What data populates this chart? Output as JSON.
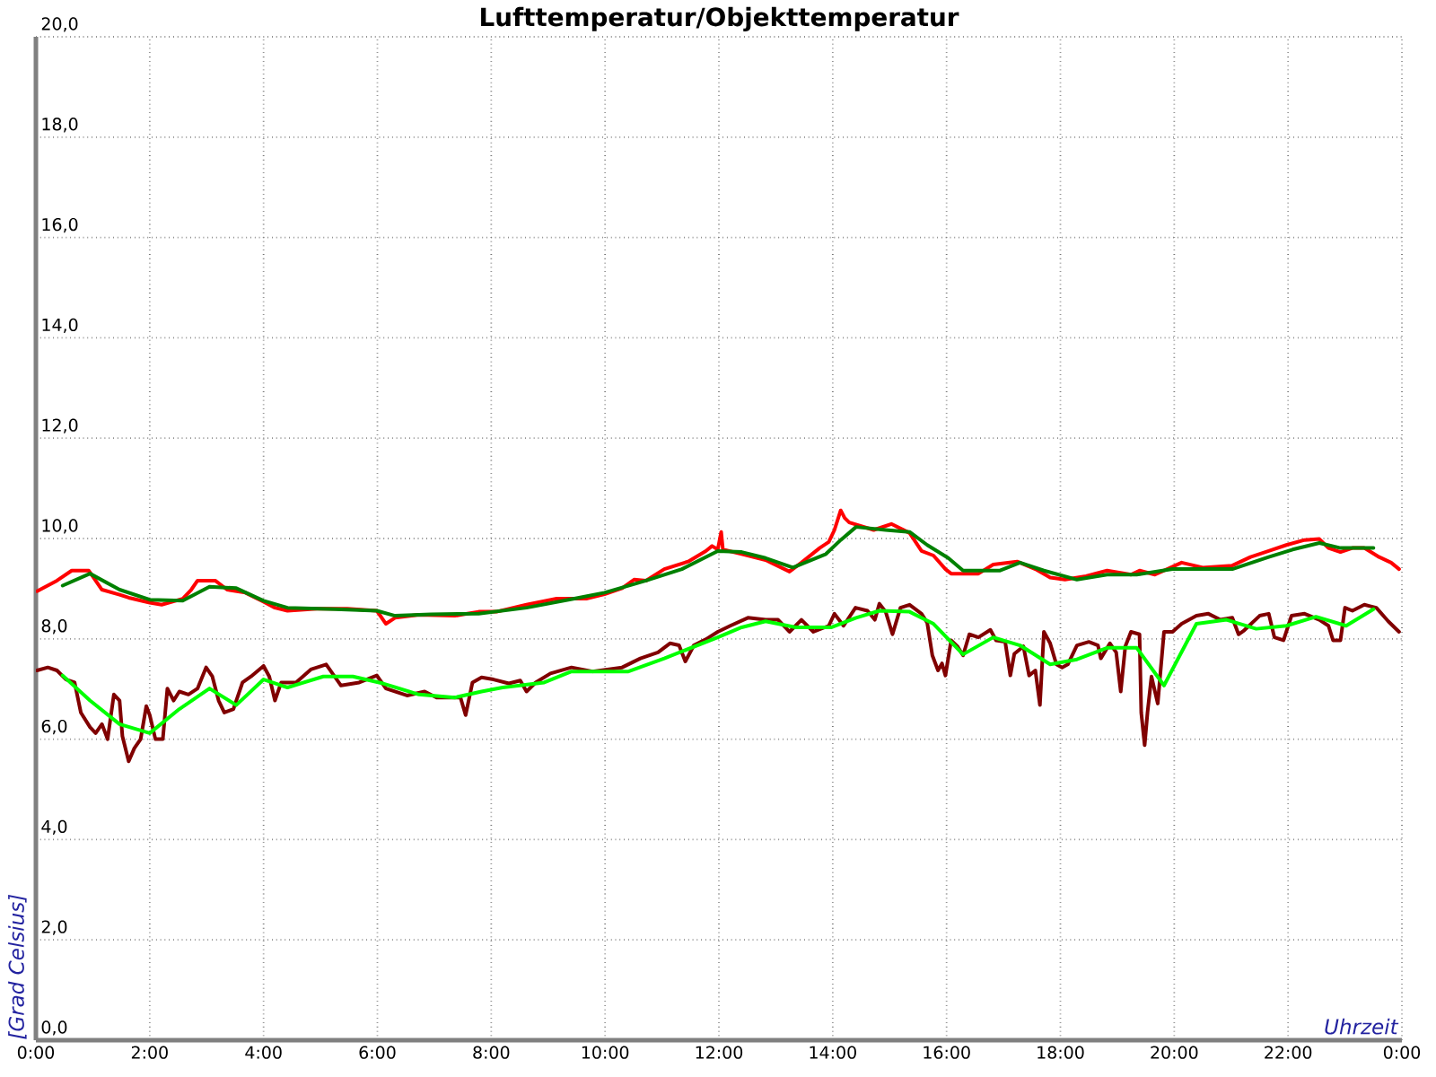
{
  "chart_data": {
    "type": "line",
    "title": "Lufttemperatur/Objekttemperatur",
    "xlabel": "Uhrzeit",
    "ylabel": "[Grad Celsius]",
    "xlim": [
      0,
      24
    ],
    "ylim": [
      0,
      20
    ],
    "xticks": [
      {
        "value": 0,
        "label": "0:00"
      },
      {
        "value": 2,
        "label": "2:00"
      },
      {
        "value": 4,
        "label": "4:00"
      },
      {
        "value": 6,
        "label": "6:00"
      },
      {
        "value": 8,
        "label": "8:00"
      },
      {
        "value": 10,
        "label": "10:00"
      },
      {
        "value": 12,
        "label": "12:00"
      },
      {
        "value": 14,
        "label": "14:00"
      },
      {
        "value": 16,
        "label": "16:00"
      },
      {
        "value": 18,
        "label": "18:00"
      },
      {
        "value": 20,
        "label": "20:00"
      },
      {
        "value": 22,
        "label": "22:00"
      },
      {
        "value": 24,
        "label": "0:00"
      }
    ],
    "yticks": [
      {
        "value": 0,
        "label": "0,0"
      },
      {
        "value": 2,
        "label": "2,0"
      },
      {
        "value": 4,
        "label": "4,0"
      },
      {
        "value": 6,
        "label": "6,0"
      },
      {
        "value": 8,
        "label": "8,0"
      },
      {
        "value": 10,
        "label": "10,0"
      },
      {
        "value": 12,
        "label": "12,0"
      },
      {
        "value": 14,
        "label": "14,0"
      },
      {
        "value": 16,
        "label": "16,0"
      },
      {
        "value": 18,
        "label": "18,0"
      },
      {
        "value": 20,
        "label": "20,0"
      }
    ],
    "grid": true,
    "series": [
      {
        "color": "#ff0000",
        "x": [
          0.02,
          0.37,
          0.63,
          0.93,
          1.16,
          1.47,
          1.63,
          2.0,
          2.21,
          2.58,
          2.73,
          2.84,
          3.15,
          3.36,
          3.68,
          4.0,
          4.2,
          4.42,
          4.94,
          5.47,
          5.99,
          6.15,
          6.31,
          6.73,
          7.36,
          7.78,
          8.09,
          8.62,
          9.15,
          9.67,
          9.99,
          10.3,
          10.51,
          10.72,
          11.04,
          11.46,
          11.77,
          11.88,
          11.98,
          12.04,
          12.07,
          12.4,
          12.82,
          13.24,
          13.45,
          13.77,
          13.93,
          14.03,
          14.14,
          14.21,
          14.29,
          14.72,
          15.03,
          15.35,
          15.56,
          15.77,
          15.98,
          16.08,
          16.56,
          16.82,
          17.24,
          17.56,
          17.82,
          18.08,
          18.45,
          18.82,
          19.24,
          19.39,
          19.66,
          20.13,
          20.5,
          21.02,
          21.34,
          21.66,
          21.97,
          22.29,
          22.55,
          22.71,
          22.92,
          23.13,
          23.34,
          23.6,
          23.81,
          23.95
        ],
        "values": [
          8.95,
          9.16,
          9.36,
          9.36,
          8.98,
          8.88,
          8.82,
          8.72,
          8.68,
          8.8,
          8.98,
          9.16,
          9.16,
          8.98,
          8.92,
          8.74,
          8.62,
          8.56,
          8.6,
          8.6,
          8.56,
          8.3,
          8.42,
          8.48,
          8.46,
          8.54,
          8.54,
          8.68,
          8.8,
          8.8,
          8.89,
          9.01,
          9.18,
          9.16,
          9.39,
          9.54,
          9.75,
          9.85,
          9.78,
          10.13,
          9.78,
          9.69,
          9.57,
          9.34,
          9.52,
          9.81,
          9.93,
          10.17,
          10.56,
          10.41,
          10.32,
          10.17,
          10.29,
          10.11,
          9.75,
          9.66,
          9.39,
          9.3,
          9.3,
          9.48,
          9.54,
          9.39,
          9.22,
          9.18,
          9.25,
          9.36,
          9.28,
          9.36,
          9.28,
          9.52,
          9.42,
          9.46,
          9.63,
          9.75,
          9.87,
          9.97,
          9.99,
          9.81,
          9.73,
          9.81,
          9.81,
          9.63,
          9.52,
          9.39
        ]
      },
      {
        "color": "#008000",
        "x": [
          0.47,
          0.95,
          1.47,
          2.0,
          2.58,
          3.05,
          3.52,
          4.0,
          4.42,
          5.26,
          5.99,
          6.31,
          6.94,
          7.78,
          8.62,
          9.46,
          9.99,
          10.72,
          11.35,
          11.98,
          12.4,
          12.82,
          13.3,
          13.88,
          14.14,
          14.41,
          14.93,
          15.35,
          15.66,
          16.03,
          16.29,
          16.93,
          17.29,
          17.71,
          18.29,
          18.82,
          19.34,
          19.97,
          21.02,
          21.66,
          22.08,
          22.55,
          22.92,
          23.5
        ],
        "values": [
          9.06,
          9.3,
          8.98,
          8.78,
          8.76,
          9.04,
          9.01,
          8.76,
          8.62,
          8.59,
          8.56,
          8.46,
          8.49,
          8.5,
          8.62,
          8.8,
          8.92,
          9.16,
          9.39,
          9.75,
          9.73,
          9.61,
          9.42,
          9.69,
          9.97,
          10.23,
          10.17,
          10.13,
          9.87,
          9.61,
          9.36,
          9.36,
          9.52,
          9.36,
          9.18,
          9.28,
          9.28,
          9.39,
          9.39,
          9.63,
          9.78,
          9.91,
          9.81,
          9.81
        ]
      },
      {
        "color": "#800000",
        "x": [
          0.02,
          0.21,
          0.37,
          0.53,
          0.68,
          0.79,
          0.95,
          1.05,
          1.16,
          1.26,
          1.37,
          1.47,
          1.52,
          1.63,
          1.73,
          1.84,
          1.94,
          2.0,
          2.1,
          2.23,
          2.31,
          2.42,
          2.52,
          2.68,
          2.84,
          2.99,
          3.1,
          3.21,
          3.31,
          3.47,
          3.63,
          3.78,
          4.0,
          4.1,
          4.2,
          4.31,
          4.57,
          4.83,
          5.1,
          5.36,
          5.68,
          5.99,
          6.15,
          6.52,
          6.83,
          7.04,
          7.46,
          7.55,
          7.67,
          7.83,
          8.04,
          8.31,
          8.51,
          8.62,
          8.78,
          9.04,
          9.41,
          9.78,
          10.3,
          10.62,
          10.93,
          11.14,
          11.3,
          11.41,
          11.56,
          11.77,
          11.98,
          12.2,
          12.51,
          12.82,
          13.04,
          13.24,
          13.45,
          13.66,
          13.93,
          14.03,
          14.19,
          14.4,
          14.61,
          14.74,
          14.82,
          14.93,
          15.05,
          15.19,
          15.35,
          15.56,
          15.66,
          15.75,
          15.85,
          15.92,
          15.98,
          16.08,
          16.19,
          16.29,
          16.4,
          16.56,
          16.77,
          16.87,
          17.03,
          17.12,
          17.19,
          17.35,
          17.45,
          17.56,
          17.64,
          17.71,
          17.82,
          17.93,
          18.03,
          18.13,
          18.29,
          18.5,
          18.66,
          18.71,
          18.87,
          18.98,
          19.06,
          19.14,
          19.24,
          19.39,
          19.42,
          19.48,
          19.53,
          19.6,
          19.71,
          19.82,
          19.97,
          20.13,
          20.39,
          20.6,
          20.81,
          21.02,
          21.13,
          21.23,
          21.5,
          21.66,
          21.76,
          21.92,
          22.06,
          22.29,
          22.55,
          22.71,
          22.79,
          22.92,
          23.0,
          23.13,
          23.34,
          23.55,
          23.76,
          23.95
        ],
        "values": [
          7.37,
          7.43,
          7.37,
          7.19,
          7.13,
          6.53,
          6.24,
          6.12,
          6.3,
          6.0,
          6.89,
          6.77,
          6.06,
          5.56,
          5.82,
          6.0,
          6.66,
          6.48,
          6.0,
          6.0,
          7.01,
          6.77,
          6.95,
          6.89,
          7.01,
          7.43,
          7.25,
          6.77,
          6.53,
          6.6,
          7.13,
          7.25,
          7.46,
          7.25,
          6.77,
          7.13,
          7.13,
          7.39,
          7.49,
          7.07,
          7.13,
          7.27,
          7.01,
          6.87,
          6.95,
          6.83,
          6.83,
          6.48,
          7.13,
          7.23,
          7.19,
          7.11,
          7.17,
          6.95,
          7.13,
          7.31,
          7.43,
          7.35,
          7.43,
          7.61,
          7.73,
          7.91,
          7.87,
          7.55,
          7.87,
          7.99,
          8.14,
          8.26,
          8.42,
          8.38,
          8.38,
          8.14,
          8.38,
          8.14,
          8.26,
          8.5,
          8.26,
          8.62,
          8.56,
          8.38,
          8.7,
          8.54,
          8.09,
          8.62,
          8.68,
          8.5,
          8.32,
          7.67,
          7.37,
          7.51,
          7.27,
          7.97,
          7.85,
          7.67,
          8.09,
          8.03,
          8.18,
          7.97,
          7.94,
          7.27,
          7.7,
          7.85,
          7.27,
          7.37,
          6.68,
          8.14,
          7.91,
          7.49,
          7.43,
          7.49,
          7.87,
          7.94,
          7.87,
          7.61,
          7.91,
          7.73,
          6.95,
          7.85,
          8.14,
          8.09,
          6.53,
          5.88,
          6.53,
          7.25,
          6.71,
          8.14,
          8.14,
          8.3,
          8.46,
          8.5,
          8.38,
          8.42,
          8.09,
          8.17,
          8.46,
          8.5,
          8.03,
          7.97,
          8.46,
          8.5,
          8.38,
          8.26,
          7.97,
          7.97,
          8.62,
          8.56,
          8.68,
          8.62,
          8.35,
          8.14
        ]
      },
      {
        "color": "#00ff00",
        "x": [
          0.47,
          0.95,
          1.47,
          2.0,
          2.52,
          3.05,
          3.52,
          4.0,
          4.42,
          5.05,
          5.57,
          6.1,
          6.73,
          7.36,
          7.83,
          8.2,
          8.93,
          9.41,
          10.41,
          11.04,
          11.98,
          12.4,
          12.82,
          13.35,
          13.98,
          14.41,
          14.82,
          15.35,
          15.77,
          16.29,
          16.82,
          17.29,
          17.82,
          18.29,
          18.82,
          19.34,
          19.82,
          20.39,
          20.92,
          21.44,
          21.97,
          22.49,
          23.02,
          23.5
        ],
        "values": [
          7.27,
          6.77,
          6.3,
          6.12,
          6.6,
          7.01,
          6.68,
          7.19,
          7.03,
          7.25,
          7.25,
          7.11,
          6.89,
          6.83,
          6.95,
          7.03,
          7.13,
          7.35,
          7.35,
          7.61,
          8.03,
          8.23,
          8.35,
          8.23,
          8.23,
          8.42,
          8.56,
          8.54,
          8.3,
          7.69,
          8.03,
          7.87,
          7.49,
          7.59,
          7.82,
          7.82,
          7.07,
          8.3,
          8.38,
          8.2,
          8.26,
          8.44,
          8.26,
          8.59
        ]
      }
    ]
  }
}
